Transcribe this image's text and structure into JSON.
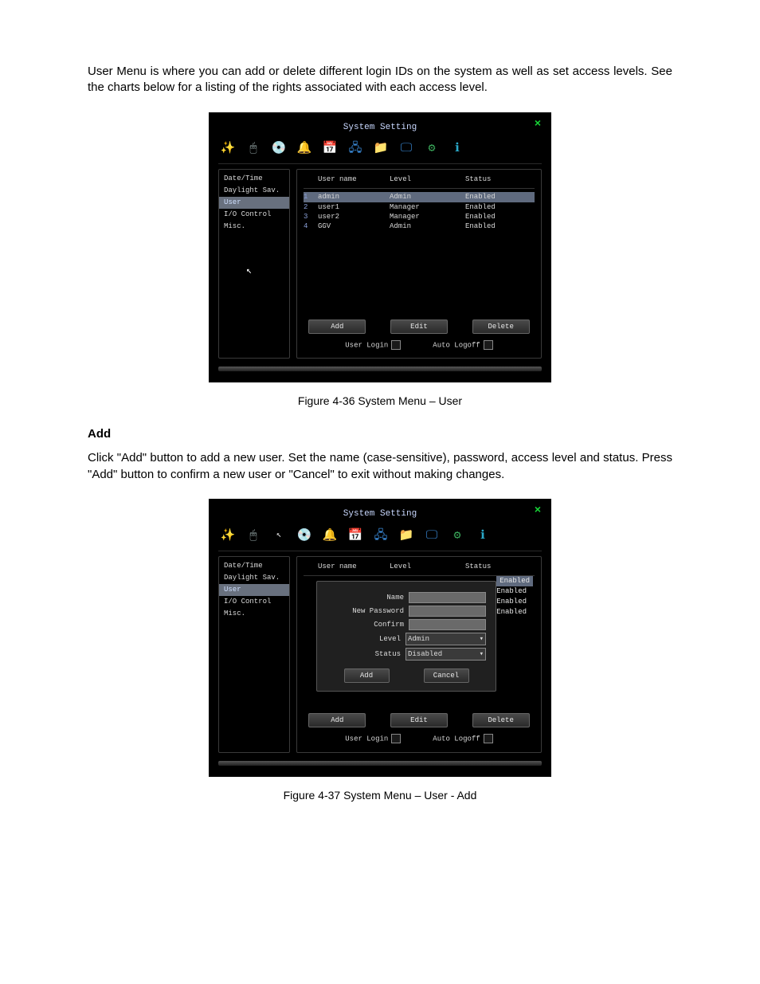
{
  "intro_text": "User Menu is where you can add or delete different login IDs on the system as well as set access levels. See the charts below for a listing of the rights associated with each access level.",
  "add_heading": "Add",
  "add_text": "Click \"Add\" button to add a new user. Set the name (case-sensitive), password, access level and status. Press \"Add\" button to confirm a new user or \"Cancel\" to exit without making changes.",
  "caption1": "Figure 4-36 System Menu – User",
  "caption2": "Figure 4-37 System Menu – User - Add",
  "window_title": "System Setting",
  "close_glyph": "×",
  "sidebar": [
    "Date/Time",
    "Daylight Sav.",
    "User",
    "I/O Control",
    "Misc."
  ],
  "sidebar_active_index": 2,
  "toolbar_icons": [
    {
      "name": "wand-icon",
      "glyph": "✨",
      "color": "#d8d8d8"
    },
    {
      "name": "mouse-icon",
      "glyph": "🖱",
      "color": "#9aa"
    },
    {
      "name": "disc-icon",
      "glyph": "💿",
      "color": "#c8a84a"
    },
    {
      "name": "bell-icon",
      "glyph": "🔔",
      "color": "#e8a838"
    },
    {
      "name": "schedule-icon",
      "glyph": "📅",
      "color": "#3a8ad8"
    },
    {
      "name": "network-icon",
      "glyph": "🖧",
      "color": "#3a8ad8"
    },
    {
      "name": "folder-icon",
      "glyph": "📁",
      "color": "#d89a3a"
    },
    {
      "name": "display-icon",
      "glyph": "🖵",
      "color": "#3a8ad8"
    },
    {
      "name": "gear-icon",
      "glyph": "⚙",
      "color": "#3aa85a"
    },
    {
      "name": "info-icon",
      "glyph": "ℹ",
      "color": "#2aa8c8"
    }
  ],
  "table": {
    "headers": {
      "num": "",
      "name": "User name",
      "level": "Level",
      "status": "Status"
    },
    "rows": [
      {
        "n": "1",
        "name": "admin",
        "level": "Admin",
        "status": "Enabled",
        "selected": true
      },
      {
        "n": "2",
        "name": "user1",
        "level": "Manager",
        "status": "Enabled",
        "selected": false
      },
      {
        "n": "3",
        "name": "user2",
        "level": "Manager",
        "status": "Enabled",
        "selected": false
      },
      {
        "n": "4",
        "name": "GGV",
        "level": "Admin",
        "status": "Enabled",
        "selected": false
      }
    ]
  },
  "buttons": {
    "add": "Add",
    "edit": "Edit",
    "delete": "Delete"
  },
  "checks": {
    "user_login": "User Login",
    "auto_logoff": "Auto Logoff"
  },
  "dialog": {
    "labels": {
      "name": "Name",
      "new_password": "New Password",
      "confirm": "Confirm",
      "level": "Level",
      "status": "Status"
    },
    "level_value": "Admin",
    "status_value": "Disabled",
    "add": "Add",
    "cancel": "Cancel"
  },
  "side_status": [
    "Enabled",
    "Enabled",
    "Enabled",
    "Enabled"
  ],
  "colors": {
    "page_bg": "#ffffff",
    "dvr_bg": "#000000",
    "text": "#e8e8e8",
    "accent": "#c9d8ff",
    "close": "#17d437",
    "row_sel": "#5f6a7e"
  }
}
